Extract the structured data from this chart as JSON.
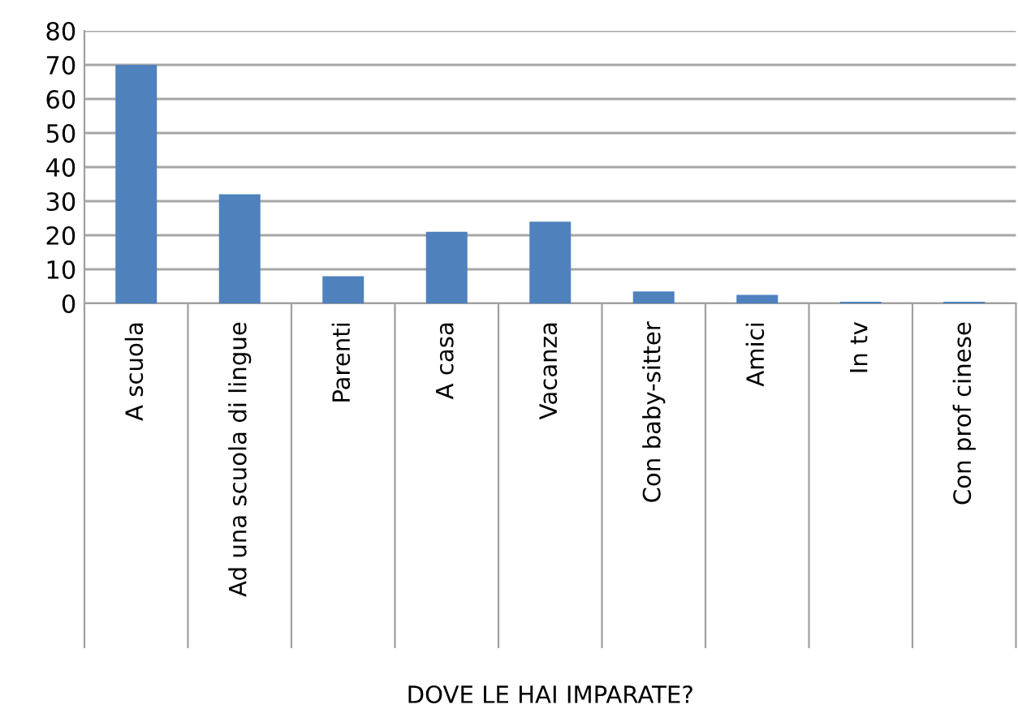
{
  "chart_data": {
    "type": "bar",
    "xlabel": "DOVE LE HAI IMPARATE?",
    "categories": [
      "A scuola",
      "Ad una scuola di lingue",
      "Parenti",
      "A casa",
      "Vacanza",
      "Con baby-sitter",
      "Amici",
      "In tv",
      "Con prof cinese"
    ],
    "values": [
      70,
      32,
      8,
      21,
      24,
      3.5,
      2.5,
      0.5,
      0.5
    ],
    "color": "#4f81bd",
    "ylim": [
      0,
      80
    ],
    "yticks": [
      0,
      10,
      20,
      30,
      40,
      50,
      60,
      70,
      80
    ],
    "grid": "y"
  }
}
